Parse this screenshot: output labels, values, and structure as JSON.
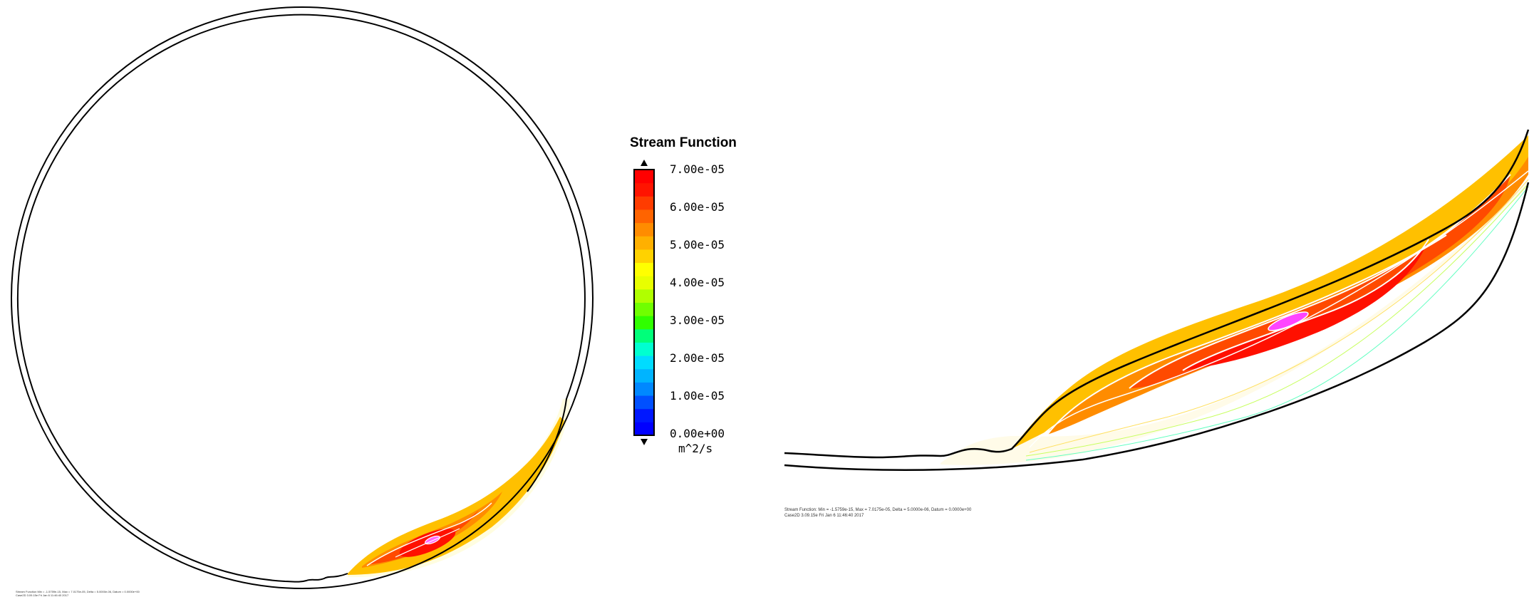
{
  "chart_data": {
    "type": "contour",
    "title": "Stream Function",
    "units": "m^2/s",
    "colorbar": {
      "min": 0,
      "max": 7e-05,
      "tick_labels": [
        "7.00e-05",
        "6.00e-05",
        "5.00e-05",
        "4.00e-05",
        "3.00e-05",
        "2.00e-05",
        "1.00e-05",
        "0.00e+00"
      ],
      "tick_values": [
        7e-05,
        6e-05,
        5e-05,
        4e-05,
        3e-05,
        2e-05,
        1e-05,
        0.0
      ],
      "band_colors": [
        "#0000ff",
        "#0018ff",
        "#0050ff",
        "#0088ff",
        "#00b4ff",
        "#00dcff",
        "#00ffd0",
        "#00ff7a",
        "#30ff00",
        "#70ff00",
        "#b0ff00",
        "#e8ff00",
        "#ffff00",
        "#ffd200",
        "#ffb000",
        "#ff8c00",
        "#ff6400",
        "#ff3c00",
        "#ff1400",
        "#ff0000"
      ]
    },
    "panels": [
      {
        "name": "full view",
        "footer": [
          "Stream Function Min = -1.5759e-15, Max = 7.0175e-05, Delta = 5.0000e-06, Datum = 0.0000e+00",
          "Case2D 3.09.15e Fri Jan 6 11:46:40 2017"
        ]
      },
      {
        "name": "zoomed view",
        "footer": [
          "Stream Function: Min = -1.5759e-15, Max = 7.0175e-05, Delta = 5.0000e-06, Datum = 0.0000e+00",
          "Case2D 3.09.15e Fri Jan 6 11:46:40 2017"
        ]
      }
    ]
  }
}
